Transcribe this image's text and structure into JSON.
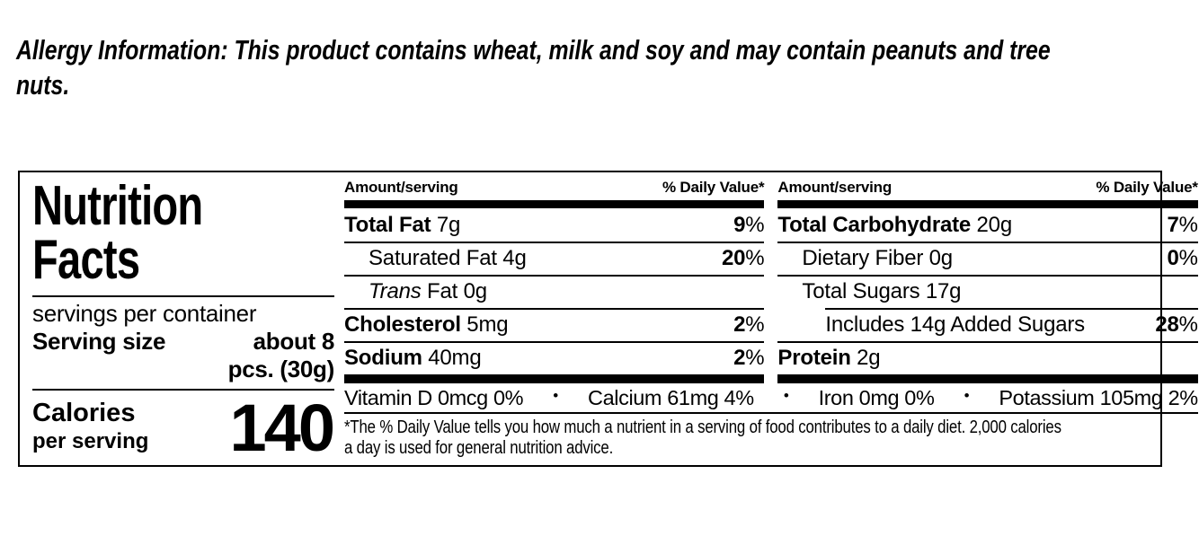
{
  "colors": {
    "background": "#ffffff",
    "text": "#000000",
    "rule": "#000000",
    "thick_bar": "#000000"
  },
  "allergy": {
    "lines": [
      "Allergy Information: This product contains wheat, milk and soy and may contain peanuts and tree",
      "nuts."
    ]
  },
  "label": {
    "title_lines": [
      "Nutrition",
      "Facts"
    ],
    "servings_per_container": "servings per container",
    "serving_size_label": "Serving size",
    "serving_size_value": {
      "line1": "about 8",
      "line2": "pcs. (30g)"
    },
    "calories_label": "Calories",
    "calories_sub": "per serving",
    "calories_value": "140",
    "dv_suffix": "%",
    "columns": [
      {
        "header_amount": "Amount/serving",
        "header_dv": "% Daily Value*",
        "rows": [
          {
            "label": "Total Fat",
            "amount": "7g",
            "dv": "9",
            "bold": true,
            "indent": 0
          },
          {
            "label": "Saturated Fat",
            "amount": "4g",
            "dv": "20",
            "bold": false,
            "indent": 1
          },
          {
            "label_italic": "Trans",
            "label": " Fat",
            "amount": "0g",
            "dv": "",
            "bold": false,
            "indent": 1
          },
          {
            "label": "Cholesterol",
            "amount": "5mg",
            "dv": "2",
            "bold": true,
            "indent": 0
          },
          {
            "label": "Sodium",
            "amount": "40mg",
            "dv": "2",
            "bold": true,
            "indent": 0
          }
        ]
      },
      {
        "header_amount": "Amount/serving",
        "header_dv": "% Daily Value*",
        "rows": [
          {
            "label": "Total Carbohydrate",
            "amount": "20g",
            "dv": "7",
            "bold": true,
            "indent": 0
          },
          {
            "label": "Dietary Fiber",
            "amount": "0g",
            "dv": "0",
            "bold": false,
            "indent": 1
          },
          {
            "label": "Total Sugars",
            "amount": "17g",
            "dv": "",
            "bold": false,
            "indent": 1
          },
          {
            "label": "Includes 14g Added Sugars",
            "amount": "",
            "dv": "28",
            "bold": false,
            "indent": 2,
            "rule_indent": true
          },
          {
            "label": "Protein",
            "amount": "2g",
            "dv": "",
            "bold": true,
            "indent": 0
          }
        ]
      }
    ],
    "vitamins": {
      "separator": "•",
      "items": [
        "Vitamin D 0mcg 0%",
        "Calcium 61mg 4%",
        "Iron 0mg 0%",
        "Potassium 105mg 2%"
      ]
    },
    "footnote_lines": [
      "*The % Daily Value tells you how much a nutrient in a serving of food contributes to a daily diet. 2,000 calories",
      "a day is used for general nutrition advice."
    ]
  }
}
